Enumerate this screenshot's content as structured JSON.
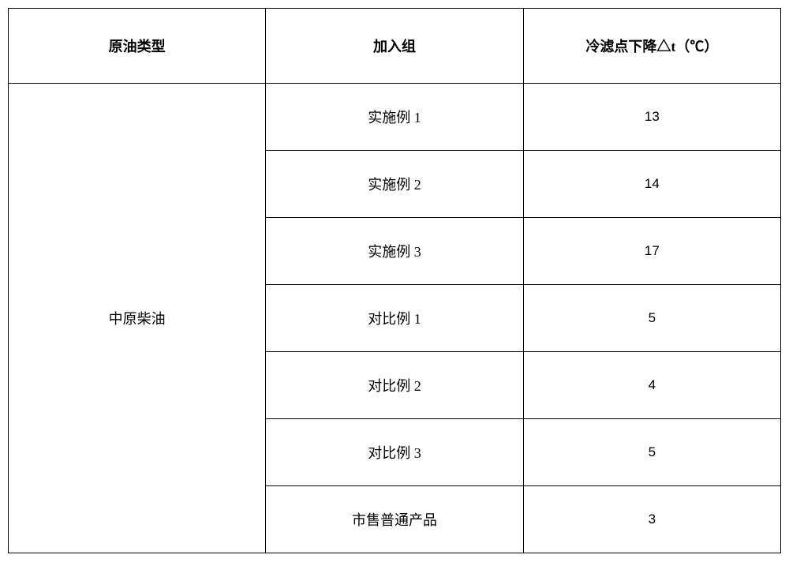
{
  "table": {
    "columns": [
      "原油类型",
      "加入组",
      "冷滤点下降△t（℃）"
    ],
    "oil_type": "中原柴油",
    "rows": [
      {
        "group": "实施例 1",
        "value": "13"
      },
      {
        "group": "实施例 2",
        "value": "14"
      },
      {
        "group": "实施例 3",
        "value": "17"
      },
      {
        "group": "对比例 1",
        "value": "5"
      },
      {
        "group": "对比例 2",
        "value": "4"
      },
      {
        "group": "对比例 3",
        "value": "5"
      },
      {
        "group": "市售普通产品",
        "value": "3"
      }
    ],
    "column_widths": [
      "30%",
      "35%",
      "35%"
    ],
    "border_color": "#000000",
    "background_color": "#ffffff",
    "text_color": "#000000",
    "header_fontsize": 18,
    "body_fontsize": 18,
    "value_fontsize": 17,
    "header_row_height": 95,
    "body_row_height": 85,
    "border_width": 1.5
  }
}
